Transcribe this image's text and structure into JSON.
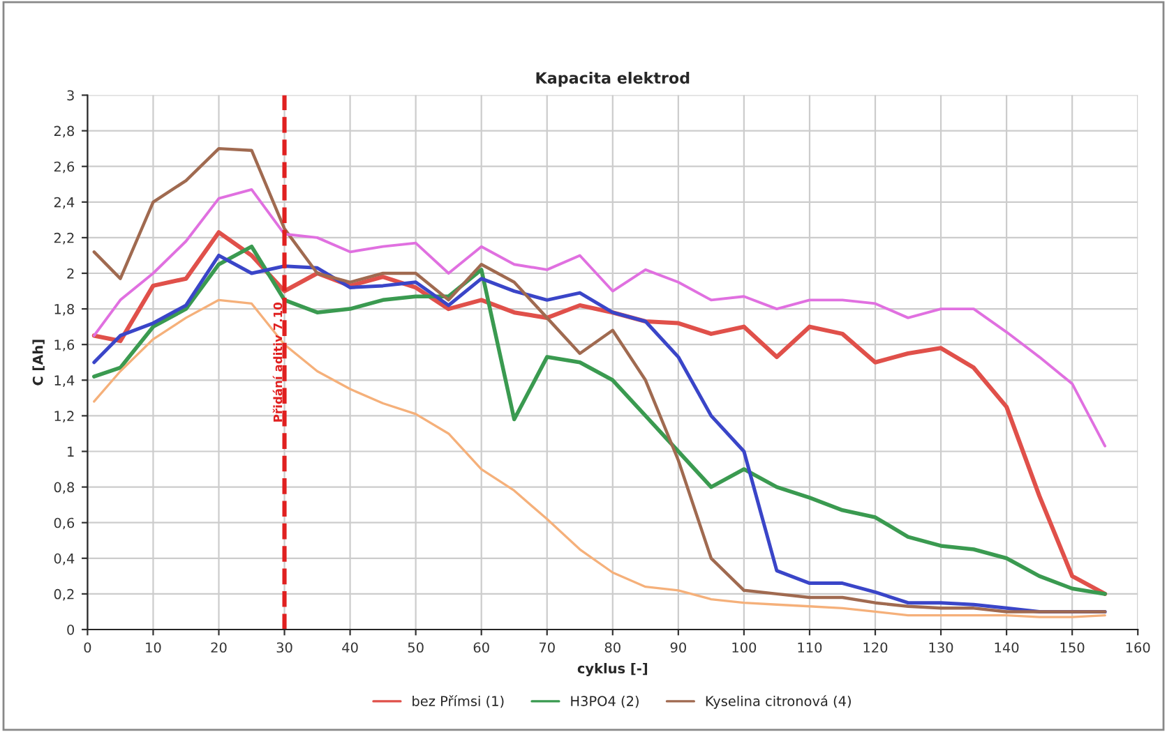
{
  "chart_data": {
    "type": "line",
    "title": "Kapacita elektrod",
    "xlabel": "cyklus [-]",
    "ylabel": "C [Ah]",
    "x": [
      1,
      5,
      10,
      15,
      20,
      25,
      30,
      35,
      40,
      45,
      50,
      55,
      60,
      65,
      70,
      75,
      80,
      85,
      90,
      95,
      100,
      105,
      110,
      115,
      120,
      125,
      130,
      135,
      140,
      145,
      150,
      155
    ],
    "series": [
      {
        "name": "bez Přímsi (1)",
        "color": "#e0504a",
        "values": [
          1.65,
          1.62,
          1.93,
          1.97,
          2.23,
          2.1,
          1.9,
          2.0,
          1.93,
          1.98,
          1.92,
          1.8,
          1.85,
          1.78,
          1.75,
          1.82,
          1.78,
          1.73,
          1.72,
          1.66,
          1.7,
          1.53,
          1.7,
          1.66,
          1.5,
          1.55,
          1.58,
          1.47,
          1.25,
          0.75,
          0.3,
          0.2
        ]
      },
      {
        "name": "H3PO4 (2)",
        "color": "#3a9a50",
        "values": [
          1.42,
          1.47,
          1.7,
          1.8,
          2.05,
          2.15,
          1.85,
          1.78,
          1.8,
          1.85,
          1.87,
          1.87,
          2.02,
          1.18,
          1.53,
          1.5,
          1.4,
          1.2,
          1.0,
          0.8,
          0.9,
          0.8,
          0.74,
          0.67,
          0.63,
          0.52,
          0.47,
          0.45,
          0.4,
          0.3,
          0.23,
          0.2
        ]
      },
      {
        "color": "#3a45c8",
        "values": [
          1.5,
          1.65,
          1.72,
          1.82,
          2.1,
          2.0,
          2.04,
          2.03,
          1.92,
          1.93,
          1.95,
          1.82,
          1.97,
          1.9,
          1.85,
          1.89,
          1.78,
          1.73,
          1.53,
          1.2,
          1.0,
          0.33,
          0.26,
          0.26,
          0.21,
          0.15,
          0.15,
          0.14,
          0.12,
          0.1,
          0.1,
          0.1
        ]
      },
      {
        "name": "Kyselina citronová (4)",
        "color": "#a06a50",
        "values": [
          2.12,
          1.97,
          2.4,
          2.52,
          2.7,
          2.69,
          2.25,
          2.0,
          1.95,
          2.0,
          2.0,
          1.85,
          2.05,
          1.95,
          1.75,
          1.55,
          1.68,
          1.4,
          0.95,
          0.4,
          0.22,
          0.2,
          0.18,
          0.18,
          0.15,
          0.13,
          0.12,
          0.12,
          0.1,
          0.1,
          0.1,
          0.1
        ]
      },
      {
        "color": "#e070e0",
        "values": [
          1.65,
          1.85,
          2.0,
          2.18,
          2.42,
          2.47,
          2.22,
          2.2,
          2.12,
          2.15,
          2.17,
          2.0,
          2.15,
          2.05,
          2.02,
          2.1,
          1.9,
          2.02,
          1.95,
          1.85,
          1.87,
          1.8,
          1.85,
          1.85,
          1.83,
          1.75,
          1.8,
          1.8,
          1.67,
          1.53,
          1.38,
          1.03
        ]
      },
      {
        "color": "#f5b07a",
        "values": [
          1.28,
          1.45,
          1.63,
          1.75,
          1.85,
          1.83,
          1.6,
          1.45,
          1.35,
          1.27,
          1.21,
          1.1,
          0.9,
          0.78,
          0.62,
          0.45,
          0.32,
          0.24,
          0.22,
          0.17,
          0.15,
          0.14,
          0.13,
          0.12,
          0.1,
          0.08,
          0.08,
          0.08,
          0.08,
          0.07,
          0.07,
          0.08
        ]
      }
    ],
    "xlim": [
      0,
      160
    ],
    "xticks": [
      0,
      10,
      20,
      30,
      40,
      50,
      60,
      70,
      80,
      90,
      100,
      110,
      120,
      130,
      140,
      150,
      160
    ],
    "ylim": [
      0,
      3
    ],
    "yticks": [
      0,
      {
        "value": 0.2,
        "label": "0,2"
      },
      {
        "value": 0.4,
        "label": "0,4"
      },
      {
        "value": 0.6,
        "label": "0,6"
      },
      {
        "value": 0.8,
        "label": "0,8"
      },
      1,
      {
        "value": 1.2,
        "label": "1,2"
      },
      {
        "value": 1.4,
        "label": "1,4"
      },
      {
        "value": 1.6,
        "label": "1,6"
      },
      {
        "value": 1.8,
        "label": "1,8"
      },
      2,
      {
        "value": 2.2,
        "label": "2,2"
      },
      {
        "value": 2.4,
        "label": "2,4"
      },
      {
        "value": 2.6,
        "label": "2,6"
      },
      {
        "value": 2.8,
        "label": "2,8"
      },
      3
    ],
    "ref_lines": [
      {
        "axis": "x",
        "value": 30,
        "label": "Přidání aditiv 7.10",
        "color": "#e02020",
        "line_style": "dashed"
      }
    ],
    "grid": true,
    "legend": "bottom",
    "marker": "none",
    "line_style": "solid"
  }
}
